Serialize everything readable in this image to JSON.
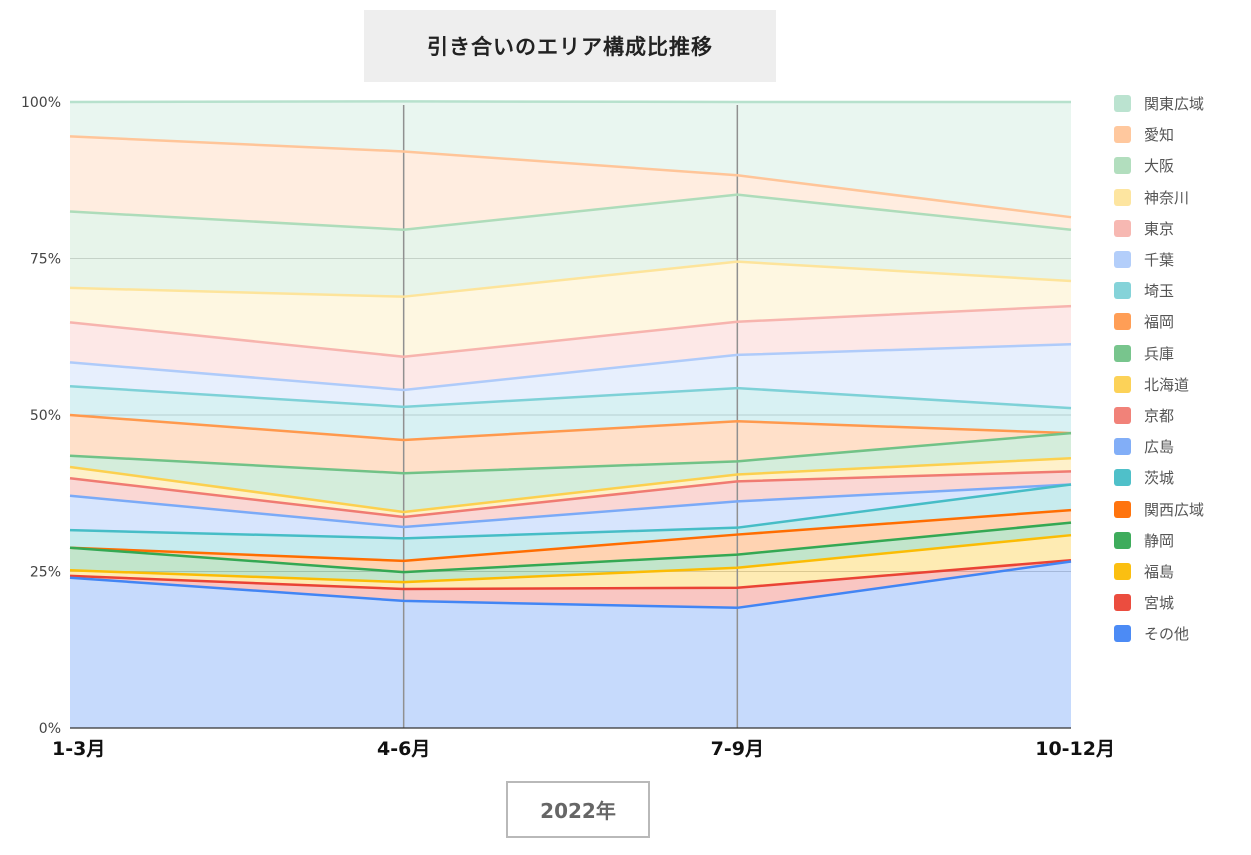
{
  "title": "引き合いのエリア構成比推移",
  "xaxis_group_label": "2022年",
  "chart_data": {
    "type": "area",
    "stacked": true,
    "title": "引き合いのエリア構成比推移",
    "categories": [
      "1-3月",
      "4-6月",
      "7-9月",
      "10-12月"
    ],
    "y_tick_labels": [
      "0%",
      "25%",
      "50%",
      "75%",
      "100%"
    ],
    "ylim": [
      0,
      100
    ],
    "unit": "%",
    "grid": true,
    "legend_position": "right",
    "series": [
      {
        "name": "その他",
        "color": "#4285f4",
        "values": [
          24.0,
          20.3,
          19.2,
          26.6
        ]
      },
      {
        "name": "宮城",
        "color": "#ea4335",
        "values": [
          0.3,
          1.9,
          3.2,
          0.2
        ]
      },
      {
        "name": "福島",
        "color": "#fbbc04",
        "values": [
          0.9,
          1.1,
          3.2,
          4.0
        ]
      },
      {
        "name": "静岡",
        "color": "#34a853",
        "values": [
          3.6,
          1.6,
          2.1,
          2.0
        ]
      },
      {
        "name": "関西広域",
        "color": "#ff6d01",
        "values": [
          0.0,
          1.8,
          3.2,
          2.0
        ]
      },
      {
        "name": "茨城",
        "color": "#46bdc6",
        "values": [
          2.8,
          3.6,
          1.1,
          4.1
        ]
      },
      {
        "name": "広島",
        "color": "#7baaf7",
        "values": [
          5.5,
          1.8,
          4.2,
          0.0
        ]
      },
      {
        "name": "京都",
        "color": "#f07b72",
        "values": [
          2.8,
          1.6,
          3.2,
          2.1
        ]
      },
      {
        "name": "北海道",
        "color": "#fcd04f",
        "values": [
          1.8,
          0.8,
          1.1,
          2.1
        ]
      },
      {
        "name": "兵庫",
        "color": "#71c287",
        "values": [
          1.8,
          6.2,
          2.1,
          4.0
        ]
      },
      {
        "name": "福岡",
        "color": "#ff994d",
        "values": [
          6.5,
          5.3,
          6.4,
          0.0
        ]
      },
      {
        "name": "埼玉",
        "color": "#7ed1d7",
        "values": [
          4.6,
          5.3,
          5.3,
          4.0
        ]
      },
      {
        "name": "千葉",
        "color": "#afcbfa",
        "values": [
          3.8,
          2.7,
          5.3,
          10.2
        ]
      },
      {
        "name": "東京",
        "color": "#f7b4ae",
        "values": [
          6.4,
          5.3,
          5.3,
          6.1
        ]
      },
      {
        "name": "神奈川",
        "color": "#fde49b",
        "values": [
          5.5,
          9.6,
          9.6,
          4.0
        ]
      },
      {
        "name": "大阪",
        "color": "#aedcba",
        "values": [
          12.2,
          10.7,
          10.7,
          8.2
        ]
      },
      {
        "name": "愛知",
        "color": "#ffc599",
        "values": [
          12.0,
          12.5,
          3.1,
          2.0
        ]
      },
      {
        "name": "関東広域",
        "color": "#b7e1cd",
        "values": [
          5.5,
          8.0,
          11.7,
          18.4
        ]
      }
    ]
  }
}
